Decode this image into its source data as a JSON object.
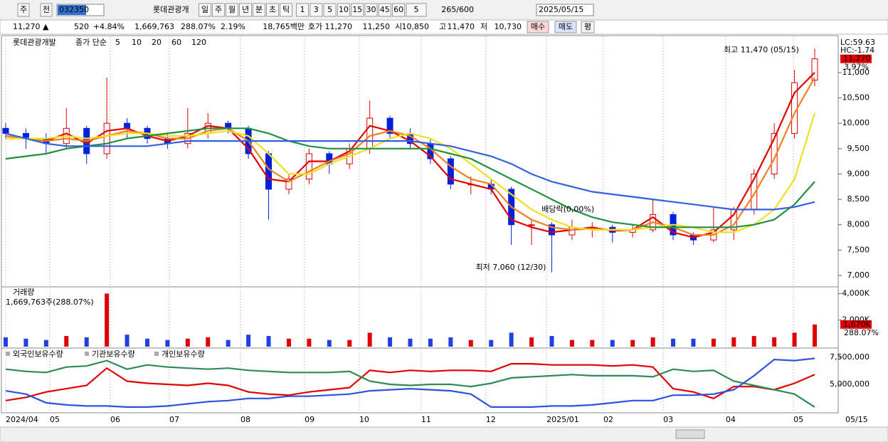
{
  "toolbar": {
    "items": [
      "주",
      "전"
    ],
    "code": "032350",
    "name": "롯데관광개",
    "periods": [
      "일",
      "주",
      "월",
      "년",
      "분",
      "초",
      "틱"
    ],
    "intervals": [
      "1",
      "3",
      "5",
      "10",
      "15",
      "30",
      "45",
      "60"
    ],
    "count": "5",
    "range": "265/600",
    "date": "2025/05/15"
  },
  "info_bar": {
    "price": "11,270 ▲",
    "change": "520",
    "change_pct": "+4.84%",
    "volume": "1,669,763",
    "volume_pct": "288.07%",
    "turnover_pct": "2.19%",
    "amount": "18,765백만",
    "quote_label": "호가",
    "ask": "11,270",
    "bid": "11,250",
    "open_label": "시",
    "open": "10,850",
    "high_label": "고",
    "high": "11,470",
    "low_label": "저",
    "low": "10,730",
    "buttons": [
      "매수",
      "매도",
      "평"
    ]
  },
  "x_axis": {
    "ticks": [
      {
        "value": 0,
        "label": "2024/04"
      },
      {
        "value": 2.18,
        "label": "05"
      },
      {
        "value": 5.17,
        "label": "06"
      },
      {
        "value": 8.09,
        "label": "07"
      },
      {
        "value": 11.61,
        "label": "08"
      },
      {
        "value": 14.78,
        "label": "09"
      },
      {
        "value": 17.48,
        "label": "10"
      },
      {
        "value": 20.54,
        "label": "11"
      },
      {
        "value": 23.74,
        "label": "12"
      },
      {
        "value": 26.74,
        "label": "2025/01"
      },
      {
        "value": 29.55,
        "label": "02"
      },
      {
        "value": 32.51,
        "label": "03"
      },
      {
        "value": 35.6,
        "label": "04"
      },
      {
        "value": 38.95,
        "label": "05"
      }
    ],
    "end_label": "05/15",
    "xlim": [
      0,
      40
    ]
  },
  "chart_data": [
    {
      "type": "candlestick",
      "title": "롯데관광개발",
      "legend_label": "종가 단순",
      "open": [
        9900,
        9800,
        9700,
        9600,
        9900,
        9400,
        10000,
        9900,
        9700,
        9600,
        9800,
        10000,
        9900,
        9400,
        8700,
        8900,
        9400,
        9200,
        9500,
        10100,
        9800,
        9600,
        9300,
        8800,
        8800,
        8700,
        8000,
        8000,
        7800,
        7950,
        7950,
        7850,
        7900,
        8200,
        7800,
        7700,
        7900,
        8300,
        9000,
        9800,
        10850
      ],
      "high": [
        10000,
        9900,
        9800,
        10300,
        9950,
        10900,
        10100,
        9950,
        9800,
        10300,
        10200,
        10050,
        9950,
        9450,
        9000,
        9500,
        9450,
        9600,
        10450,
        10150,
        9900,
        9700,
        9350,
        8950,
        8900,
        8750,
        8100,
        8050,
        8100,
        8050,
        8000,
        8000,
        8500,
        8250,
        7850,
        8350,
        8350,
        9100,
        10000,
        11050,
        11470
      ],
      "low": [
        9700,
        9500,
        9400,
        9500,
        9200,
        9300,
        9700,
        9600,
        9500,
        9500,
        9700,
        9800,
        9300,
        8100,
        8600,
        8800,
        9000,
        9100,
        9400,
        9700,
        9500,
        9200,
        8700,
        8600,
        8600,
        7600,
        7600,
        7060,
        7700,
        7750,
        7650,
        7750,
        7850,
        7700,
        7600,
        7650,
        7700,
        8200,
        8900,
        9700,
        10730
      ],
      "close": [
        9800,
        9700,
        9600,
        9900,
        9400,
        10000,
        9900,
        9700,
        9600,
        9800,
        10000,
        9900,
        9400,
        8700,
        8900,
        9400,
        9200,
        9500,
        10100,
        9800,
        9600,
        9300,
        8800,
        8800,
        8700,
        8000,
        8000,
        7800,
        7950,
        7950,
        7850,
        7900,
        8200,
        7800,
        7700,
        7900,
        8300,
        9000,
        9800,
        10800,
        11270
      ],
      "up_color": "#e00000",
      "down_color": "#0020e0",
      "series": [
        {
          "name": "5",
          "color": "#e00000",
          "values": [
            9750,
            9700,
            9650,
            9800,
            9600,
            9850,
            9900,
            9750,
            9650,
            9750,
            9950,
            9900,
            9500,
            8900,
            8850,
            9250,
            9250,
            9450,
            9950,
            9850,
            9650,
            9350,
            8900,
            8800,
            8700,
            8100,
            7950,
            7850,
            7900,
            7950,
            7880,
            7900,
            8150,
            7850,
            7750,
            7850,
            8200,
            8900,
            9700,
            10600,
            11000
          ]
        },
        {
          "name": "10",
          "color": "#f08020",
          "values": [
            9750,
            9700,
            9650,
            9700,
            9650,
            9750,
            9850,
            9800,
            9700,
            9700,
            9850,
            9900,
            9650,
            9100,
            8850,
            9050,
            9250,
            9400,
            9750,
            9850,
            9750,
            9500,
            9150,
            8900,
            8800,
            8350,
            8100,
            7950,
            7900,
            7920,
            7900,
            7900,
            8050,
            7950,
            7800,
            7800,
            8000,
            8600,
            9300,
            10200,
            10900
          ]
        },
        {
          "name": "20",
          "color": "#f0e020",
          "values": [
            9700,
            9700,
            9700,
            9750,
            9700,
            9750,
            9800,
            9800,
            9750,
            9750,
            9800,
            9850,
            9750,
            9400,
            9000,
            9000,
            9200,
            9350,
            9500,
            9700,
            9800,
            9700,
            9500,
            9200,
            8900,
            8600,
            8300,
            8100,
            7950,
            7900,
            7900,
            7900,
            7950,
            8000,
            7950,
            7850,
            7850,
            8000,
            8300,
            8900,
            10200
          ]
        },
        {
          "name": "60",
          "color": "#209040",
          "values": [
            9300,
            9350,
            9400,
            9500,
            9550,
            9600,
            9700,
            9750,
            9800,
            9850,
            9900,
            9900,
            9900,
            9800,
            9650,
            9550,
            9500,
            9500,
            9500,
            9500,
            9500,
            9500,
            9400,
            9300,
            9100,
            8900,
            8700,
            8500,
            8300,
            8150,
            8050,
            8000,
            7950,
            7950,
            7950,
            7950,
            7950,
            8000,
            8100,
            8400,
            8850
          ]
        },
        {
          "name": "120",
          "color": "#3060e0",
          "values": [
            9800,
            9700,
            9600,
            9550,
            9550,
            9550,
            9550,
            9550,
            9600,
            9650,
            9650,
            9650,
            9650,
            9650,
            9650,
            9650,
            9650,
            9650,
            9650,
            9650,
            9650,
            9600,
            9550,
            9450,
            9350,
            9200,
            9000,
            8850,
            8750,
            8650,
            8600,
            8550,
            8500,
            8450,
            8400,
            8350,
            8300,
            8300,
            8300,
            8350,
            8450
          ]
        }
      ],
      "ylim": [
        6790,
        11700
      ],
      "yticks": [
        {
          "value": 7000,
          "label": "7,000"
        },
        {
          "value": 7500,
          "label": "7,500"
        },
        {
          "value": 8000,
          "label": "8,000"
        },
        {
          "value": 8500,
          "label": "8,500"
        },
        {
          "value": 9000,
          "label": "9,000"
        },
        {
          "value": 9500,
          "label": "9,500"
        },
        {
          "value": 10000,
          "label": "10,000"
        },
        {
          "value": 10500,
          "label": "10,500"
        },
        {
          "value": 11000,
          "label": "11,000"
        }
      ],
      "high_note": "최고 11,470 (05/15)",
      "low_note": "최저 7,060 (12/30)",
      "dividend_note": "배당락(0,00%)",
      "lc": "LC:59.63",
      "hc": "HC:-1.74",
      "last_label": "11,270",
      "last_pct": "3.97%"
    },
    {
      "type": "bar",
      "title": "거래량",
      "subtitle": "1,669,763주(288.07%)",
      "values": [
        700000,
        600000,
        500000,
        800000,
        700000,
        4000000,
        900000,
        600000,
        500000,
        600000,
        700000,
        500000,
        900000,
        800000,
        600000,
        600000,
        500000,
        500000,
        1050000,
        700000,
        600000,
        600000,
        700000,
        500000,
        500000,
        1050000,
        700000,
        800000,
        500000,
        500000,
        500000,
        500000,
        700000,
        600000,
        600000,
        600000,
        700000,
        800000,
        700000,
        1050000,
        1669763
      ],
      "ylim": [
        0,
        4400000
      ],
      "yticks": [
        {
          "value": 2000000,
          "label": "2,000K"
        },
        {
          "value": 4000000,
          "label": "4,000K"
        }
      ],
      "last_label": "1,670K",
      "last_pct": "288.07%"
    },
    {
      "type": "line",
      "series": [
        {
          "name": "외국인보유수량",
          "color": "#e00000",
          "values": [
            3500000,
            3800000,
            4300000,
            4600000,
            4900000,
            6500000,
            5300000,
            5100000,
            5000000,
            4900000,
            5100000,
            4900000,
            4300000,
            4100000,
            4000000,
            4300000,
            4500000,
            4700000,
            6300000,
            6100000,
            6300000,
            6200000,
            6300000,
            6300000,
            6200000,
            6900000,
            6900000,
            6800000,
            6800000,
            6800000,
            6700000,
            6800000,
            6600000,
            4600000,
            4300000,
            3700000,
            4800000,
            4800000,
            4500000,
            5100000,
            5900000
          ]
        },
        {
          "name": "기관보유수량",
          "color": "#2e8b57",
          "values": [
            6400000,
            6200000,
            6100000,
            6600000,
            6700000,
            7200000,
            6400000,
            6800000,
            6600000,
            6500000,
            6400000,
            6500000,
            6300000,
            6200000,
            6100000,
            6100000,
            6100000,
            6200000,
            5300000,
            5000000,
            4900000,
            5000000,
            5000000,
            4800000,
            5100000,
            5600000,
            5700000,
            5800000,
            5900000,
            5800000,
            5800000,
            5800000,
            5700000,
            6400000,
            6200000,
            6300000,
            5300000,
            4900000,
            4500000,
            4100000,
            2900000
          ]
        },
        {
          "name": "개인보유수량",
          "color": "#3050e0",
          "values": [
            4400000,
            4100000,
            3300000,
            3100000,
            3000000,
            3000000,
            2900000,
            2900000,
            3000000,
            3200000,
            3400000,
            3500000,
            3700000,
            3700000,
            3900000,
            3900000,
            4000000,
            4100000,
            4400000,
            4500000,
            4600000,
            4500000,
            4400000,
            4100000,
            2900000,
            2900000,
            2900000,
            3000000,
            3000000,
            3100000,
            3300000,
            3500000,
            3500000,
            4000000,
            4000000,
            4100000,
            4500000,
            5800000,
            7300000,
            7200000,
            7400000
          ]
        }
      ],
      "ylim": [
        2370000,
        8290000
      ],
      "yticks": [
        {
          "value": 5000000,
          "label": "5,000,000"
        },
        {
          "value": 7500000,
          "label": "7,500,000"
        }
      ]
    }
  ]
}
